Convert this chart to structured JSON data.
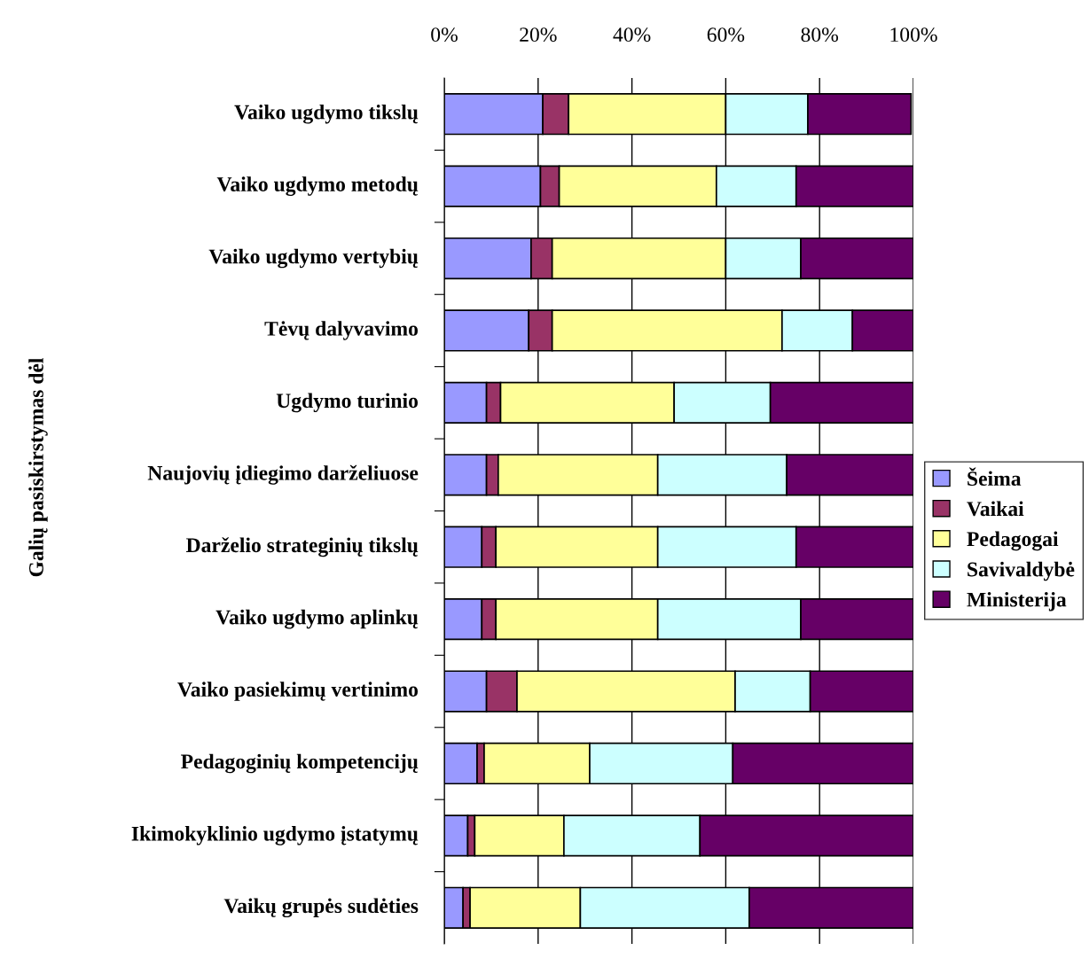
{
  "chart_data": {
    "type": "bar",
    "orientation": "horizontal",
    "stacked": true,
    "ylabel": "Galių pasiskirstymas dėl",
    "categories": [
      "Vaiko ugdymo tikslų",
      "Vaiko ugdymo metodų",
      "Vaiko ugdymo vertybių",
      "Tėvų dalyvavimo",
      "Ugdymo turinio",
      "Naujovių įdiegimo darželiuose",
      "Darželio strateginių tikslų",
      "Vaiko ugdymo aplinkų",
      "Vaiko pasiekimų vertinimo",
      "Pedagoginių kompetencijų",
      "Ikimokyklinio ugdymo įstatymų",
      "Vaikų grupės sudėties"
    ],
    "series": [
      {
        "name": "Šeima",
        "color": "#9999ff",
        "values": [
          21,
          20.5,
          18.5,
          18,
          9,
          9,
          8,
          8,
          9,
          7,
          5,
          4
        ]
      },
      {
        "name": "Vaikai",
        "color": "#993366",
        "values": [
          5.5,
          4,
          4.5,
          5,
          3,
          2.5,
          3,
          3,
          6.5,
          1.5,
          1.5,
          1.5
        ]
      },
      {
        "name": "Pedagogai",
        "color": "#ffff99",
        "values": [
          33.5,
          33.5,
          37,
          49,
          37,
          34,
          34.5,
          34.5,
          46.5,
          22.5,
          19,
          23.5
        ]
      },
      {
        "name": "Savivaldybė",
        "color": "#ccffff",
        "values": [
          17.5,
          17,
          16,
          15,
          20.5,
          27.5,
          29.5,
          30.5,
          16,
          30.5,
          29,
          36
        ]
      },
      {
        "name": "Ministerija",
        "color": "#660066",
        "values": [
          22,
          25,
          24,
          13,
          30.5,
          27,
          25,
          24,
          22,
          38.5,
          45.5,
          35
        ]
      }
    ],
    "xlim": [
      0,
      100
    ],
    "xticks": [
      {
        "value": 0,
        "label": "0%"
      },
      {
        "value": 20,
        "label": "20%"
      },
      {
        "value": 40,
        "label": "40%"
      },
      {
        "value": 60,
        "label": "60%"
      },
      {
        "value": 80,
        "label": "80%"
      },
      {
        "value": 100,
        "label": "100%"
      }
    ],
    "grid": "x",
    "legend": "right"
  }
}
